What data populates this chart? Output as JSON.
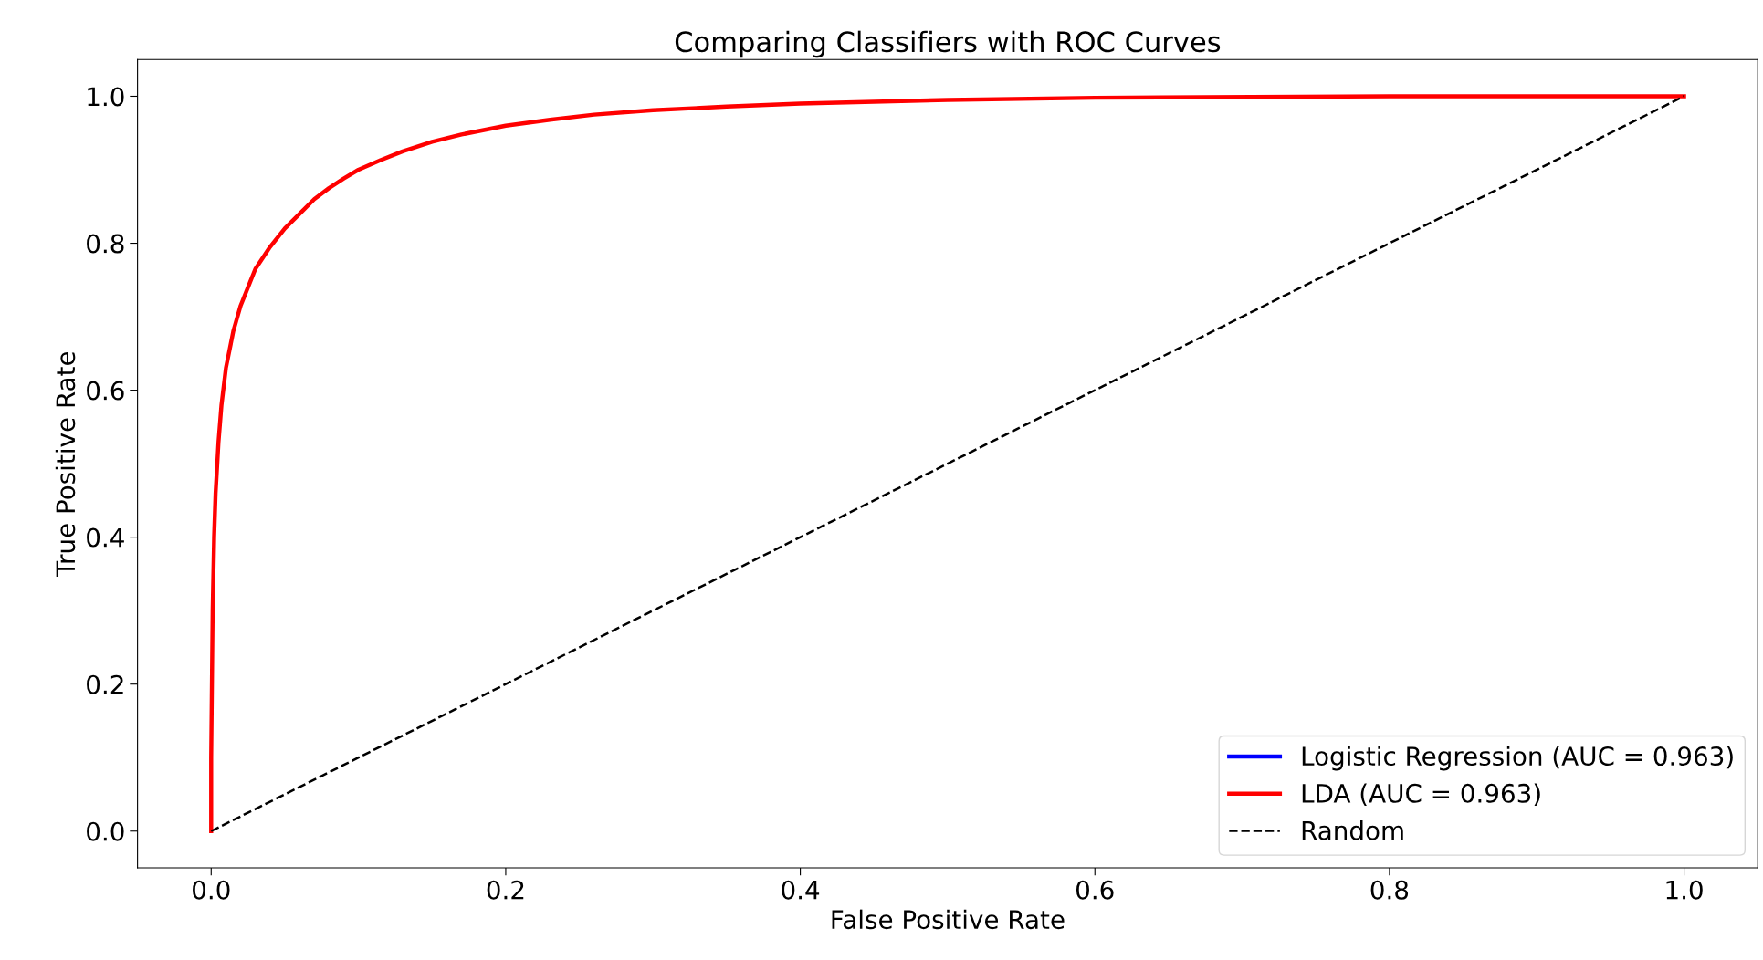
{
  "chart_data": {
    "type": "line",
    "title": "Comparing Classifiers with ROC Curves",
    "xlabel": "False Positive Rate",
    "ylabel": "True Positive Rate",
    "xlim": [
      -0.05,
      1.05
    ],
    "ylim": [
      -0.05,
      1.05
    ],
    "xticks": [
      {
        "value": 0,
        "label": "0.0"
      },
      0.2,
      0.4,
      0.6,
      0.8,
      {
        "value": 1,
        "label": "1.0"
      }
    ],
    "yticks": [
      {
        "value": 0,
        "label": "0.0"
      },
      0.2,
      0.4,
      0.6,
      0.8,
      {
        "value": 1,
        "label": "1.0"
      }
    ],
    "grid": false,
    "legend": "bottom right",
    "marker": "none",
    "series": [
      {
        "name": "Logistic Regression (AUC = 0.963)",
        "color": "#0000ff",
        "line_style": "solid"
      },
      {
        "name": "LDA (AUC = 0.963)",
        "color": "#ff0000",
        "line_style": "solid",
        "x": [
          0,
          0,
          0.001,
          0.002,
          0.003,
          0.005,
          0.007,
          0.01,
          0.015,
          0.02,
          0.025,
          0.03,
          0.04,
          0.05,
          0.06,
          0.07,
          0.08,
          0.09,
          0.1,
          0.115,
          0.13,
          0.15,
          0.17,
          0.2,
          0.23,
          0.26,
          0.3,
          0.35,
          0.4,
          0.5,
          0.6,
          0.8,
          1.0
        ],
        "values": [
          0,
          0.1,
          0.3,
          0.4,
          0.46,
          0.53,
          0.58,
          0.63,
          0.68,
          0.715,
          0.74,
          0.765,
          0.795,
          0.82,
          0.84,
          0.86,
          0.875,
          0.888,
          0.9,
          0.913,
          0.925,
          0.938,
          0.948,
          0.96,
          0.968,
          0.975,
          0.981,
          0.986,
          0.99,
          0.995,
          0.998,
          1.0,
          1.0
        ]
      },
      {
        "name": "Random",
        "color": "#000000",
        "line_style": "dashed",
        "x": [
          0,
          1
        ],
        "values": [
          0,
          1
        ]
      }
    ]
  }
}
